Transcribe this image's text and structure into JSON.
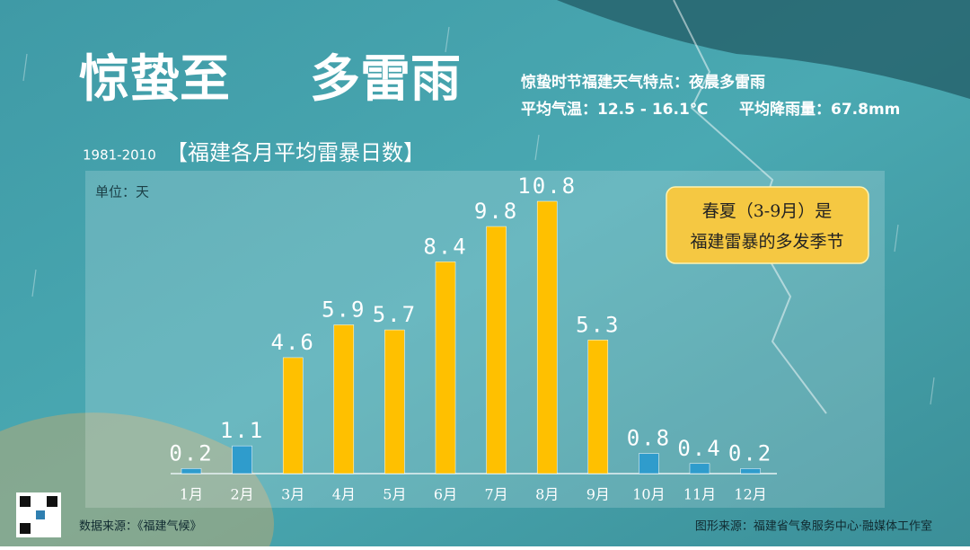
{
  "headline": {
    "title_left": "惊蛰至",
    "title_right": "多雷雨",
    "feature": "惊蛰时节福建天气特点：夜晨多雷雨",
    "temperature": "平均气温：12.5 - 16.1℃",
    "rainfall": "平均降雨量：67.8mm"
  },
  "chart_data": {
    "type": "bar",
    "subtitle": "1981-2010",
    "title": "【福建各月平均雷暴日数】",
    "unit_label": "单位：天",
    "categories": [
      "1月",
      "2月",
      "3月",
      "4月",
      "5月",
      "6月",
      "7月",
      "8月",
      "9月",
      "10月",
      "11月",
      "12月"
    ],
    "values": [
      0.2,
      1.1,
      4.6,
      5.9,
      5.7,
      8.4,
      9.8,
      10.8,
      5.3,
      0.8,
      0.4,
      0.2
    ],
    "colors": [
      "#2f9ccc",
      "#2f9ccc",
      "#ffc000",
      "#ffc000",
      "#ffc000",
      "#ffc000",
      "#ffc000",
      "#ffc000",
      "#ffc000",
      "#2f9ccc",
      "#2f9ccc",
      "#2f9ccc"
    ],
    "annotation": [
      "春夏（3-9月）是",
      "福建雷暴的多发季节"
    ]
  },
  "footer": {
    "data_source": "数据来源：《福建气候》",
    "graphic_source": "图形来源：福建省气象服务中心·融媒体工作室"
  }
}
